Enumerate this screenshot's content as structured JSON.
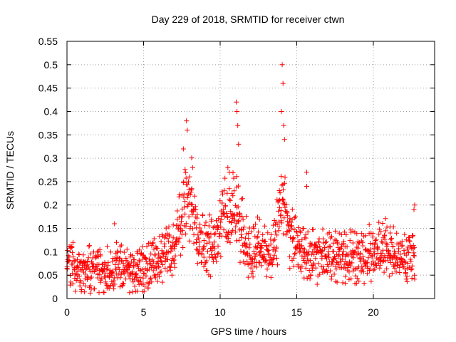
{
  "chart_data": {
    "type": "scatter",
    "title": "Day 229 of 2018, SRMTID for receiver ctwn",
    "xlabel": "GPS time / hours",
    "ylabel": "SRMTID / TECUs",
    "xlim": [
      0,
      24
    ],
    "ylim": [
      0,
      0.55
    ],
    "xticks": [
      0,
      5,
      10,
      15,
      20
    ],
    "xtick_labels": [
      "0",
      "5",
      "10",
      "15",
      "20"
    ],
    "yticks": [
      0,
      0.05,
      0.1,
      0.15,
      0.2,
      0.25,
      0.3,
      0.35,
      0.4,
      0.45,
      0.5,
      0.55
    ],
    "ytick_labels": [
      "0",
      "0.05",
      "0.1",
      "0.15",
      "0.2",
      "0.25",
      "0.3",
      "0.35",
      "0.4",
      "0.45",
      "0.5",
      "0.55"
    ],
    "grid": true,
    "marker": "+",
    "marker_color": "#ff0000",
    "series": [
      {
        "name": "SRMTID",
        "x_start": 0.0,
        "x_end": 22.7,
        "x_step": 0.05,
        "y_min": 0.01,
        "profile": [
          [
            0.0,
            0.065
          ],
          [
            0.2,
            0.09
          ],
          [
            0.5,
            0.06
          ],
          [
            1.0,
            0.06
          ],
          [
            2.0,
            0.07
          ],
          [
            2.5,
            0.05
          ],
          [
            3.0,
            0.075
          ],
          [
            4.0,
            0.06
          ],
          [
            4.5,
            0.05
          ],
          [
            5.0,
            0.07
          ],
          [
            6.0,
            0.08
          ],
          [
            7.0,
            0.11
          ],
          [
            7.6,
            0.19
          ],
          [
            8.0,
            0.22
          ],
          [
            8.5,
            0.15
          ],
          [
            9.0,
            0.12
          ],
          [
            9.5,
            0.11
          ],
          [
            10.0,
            0.17
          ],
          [
            10.3,
            0.2
          ],
          [
            10.7,
            0.15
          ],
          [
            11.0,
            0.21
          ],
          [
            11.3,
            0.15
          ],
          [
            11.6,
            0.13
          ],
          [
            12.0,
            0.1
          ],
          [
            12.5,
            0.11
          ],
          [
            13.0,
            0.1
          ],
          [
            13.5,
            0.09
          ],
          [
            14.0,
            0.22
          ],
          [
            14.5,
            0.14
          ],
          [
            15.0,
            0.11
          ],
          [
            15.5,
            0.1
          ],
          [
            16.0,
            0.09
          ],
          [
            17.0,
            0.09
          ],
          [
            18.0,
            0.09
          ],
          [
            19.0,
            0.09
          ],
          [
            20.0,
            0.1
          ],
          [
            20.5,
            0.11
          ],
          [
            21.0,
            0.1
          ],
          [
            22.0,
            0.08
          ],
          [
            22.7,
            0.1
          ]
        ],
        "spread_base": 0.035,
        "spread_scale": 0.35,
        "peaks": [
          {
            "x": 7.6,
            "y": 0.32
          },
          {
            "x": 7.8,
            "y": 0.38
          },
          {
            "x": 7.85,
            "y": 0.36
          },
          {
            "x": 8.2,
            "y": 0.28
          },
          {
            "x": 10.5,
            "y": 0.28
          },
          {
            "x": 10.6,
            "y": 0.27
          },
          {
            "x": 11.05,
            "y": 0.42
          },
          {
            "x": 11.1,
            "y": 0.4
          },
          {
            "x": 11.15,
            "y": 0.37
          },
          {
            "x": 11.2,
            "y": 0.33
          },
          {
            "x": 14.05,
            "y": 0.5
          },
          {
            "x": 14.1,
            "y": 0.46
          },
          {
            "x": 14.0,
            "y": 0.4
          },
          {
            "x": 14.15,
            "y": 0.37
          },
          {
            "x": 14.2,
            "y": 0.34
          },
          {
            "x": 15.65,
            "y": 0.27
          },
          {
            "x": 15.65,
            "y": 0.24
          },
          {
            "x": 22.7,
            "y": 0.2
          },
          {
            "x": 22.65,
            "y": 0.19
          },
          {
            "x": 3.1,
            "y": 0.16
          }
        ]
      }
    ]
  }
}
